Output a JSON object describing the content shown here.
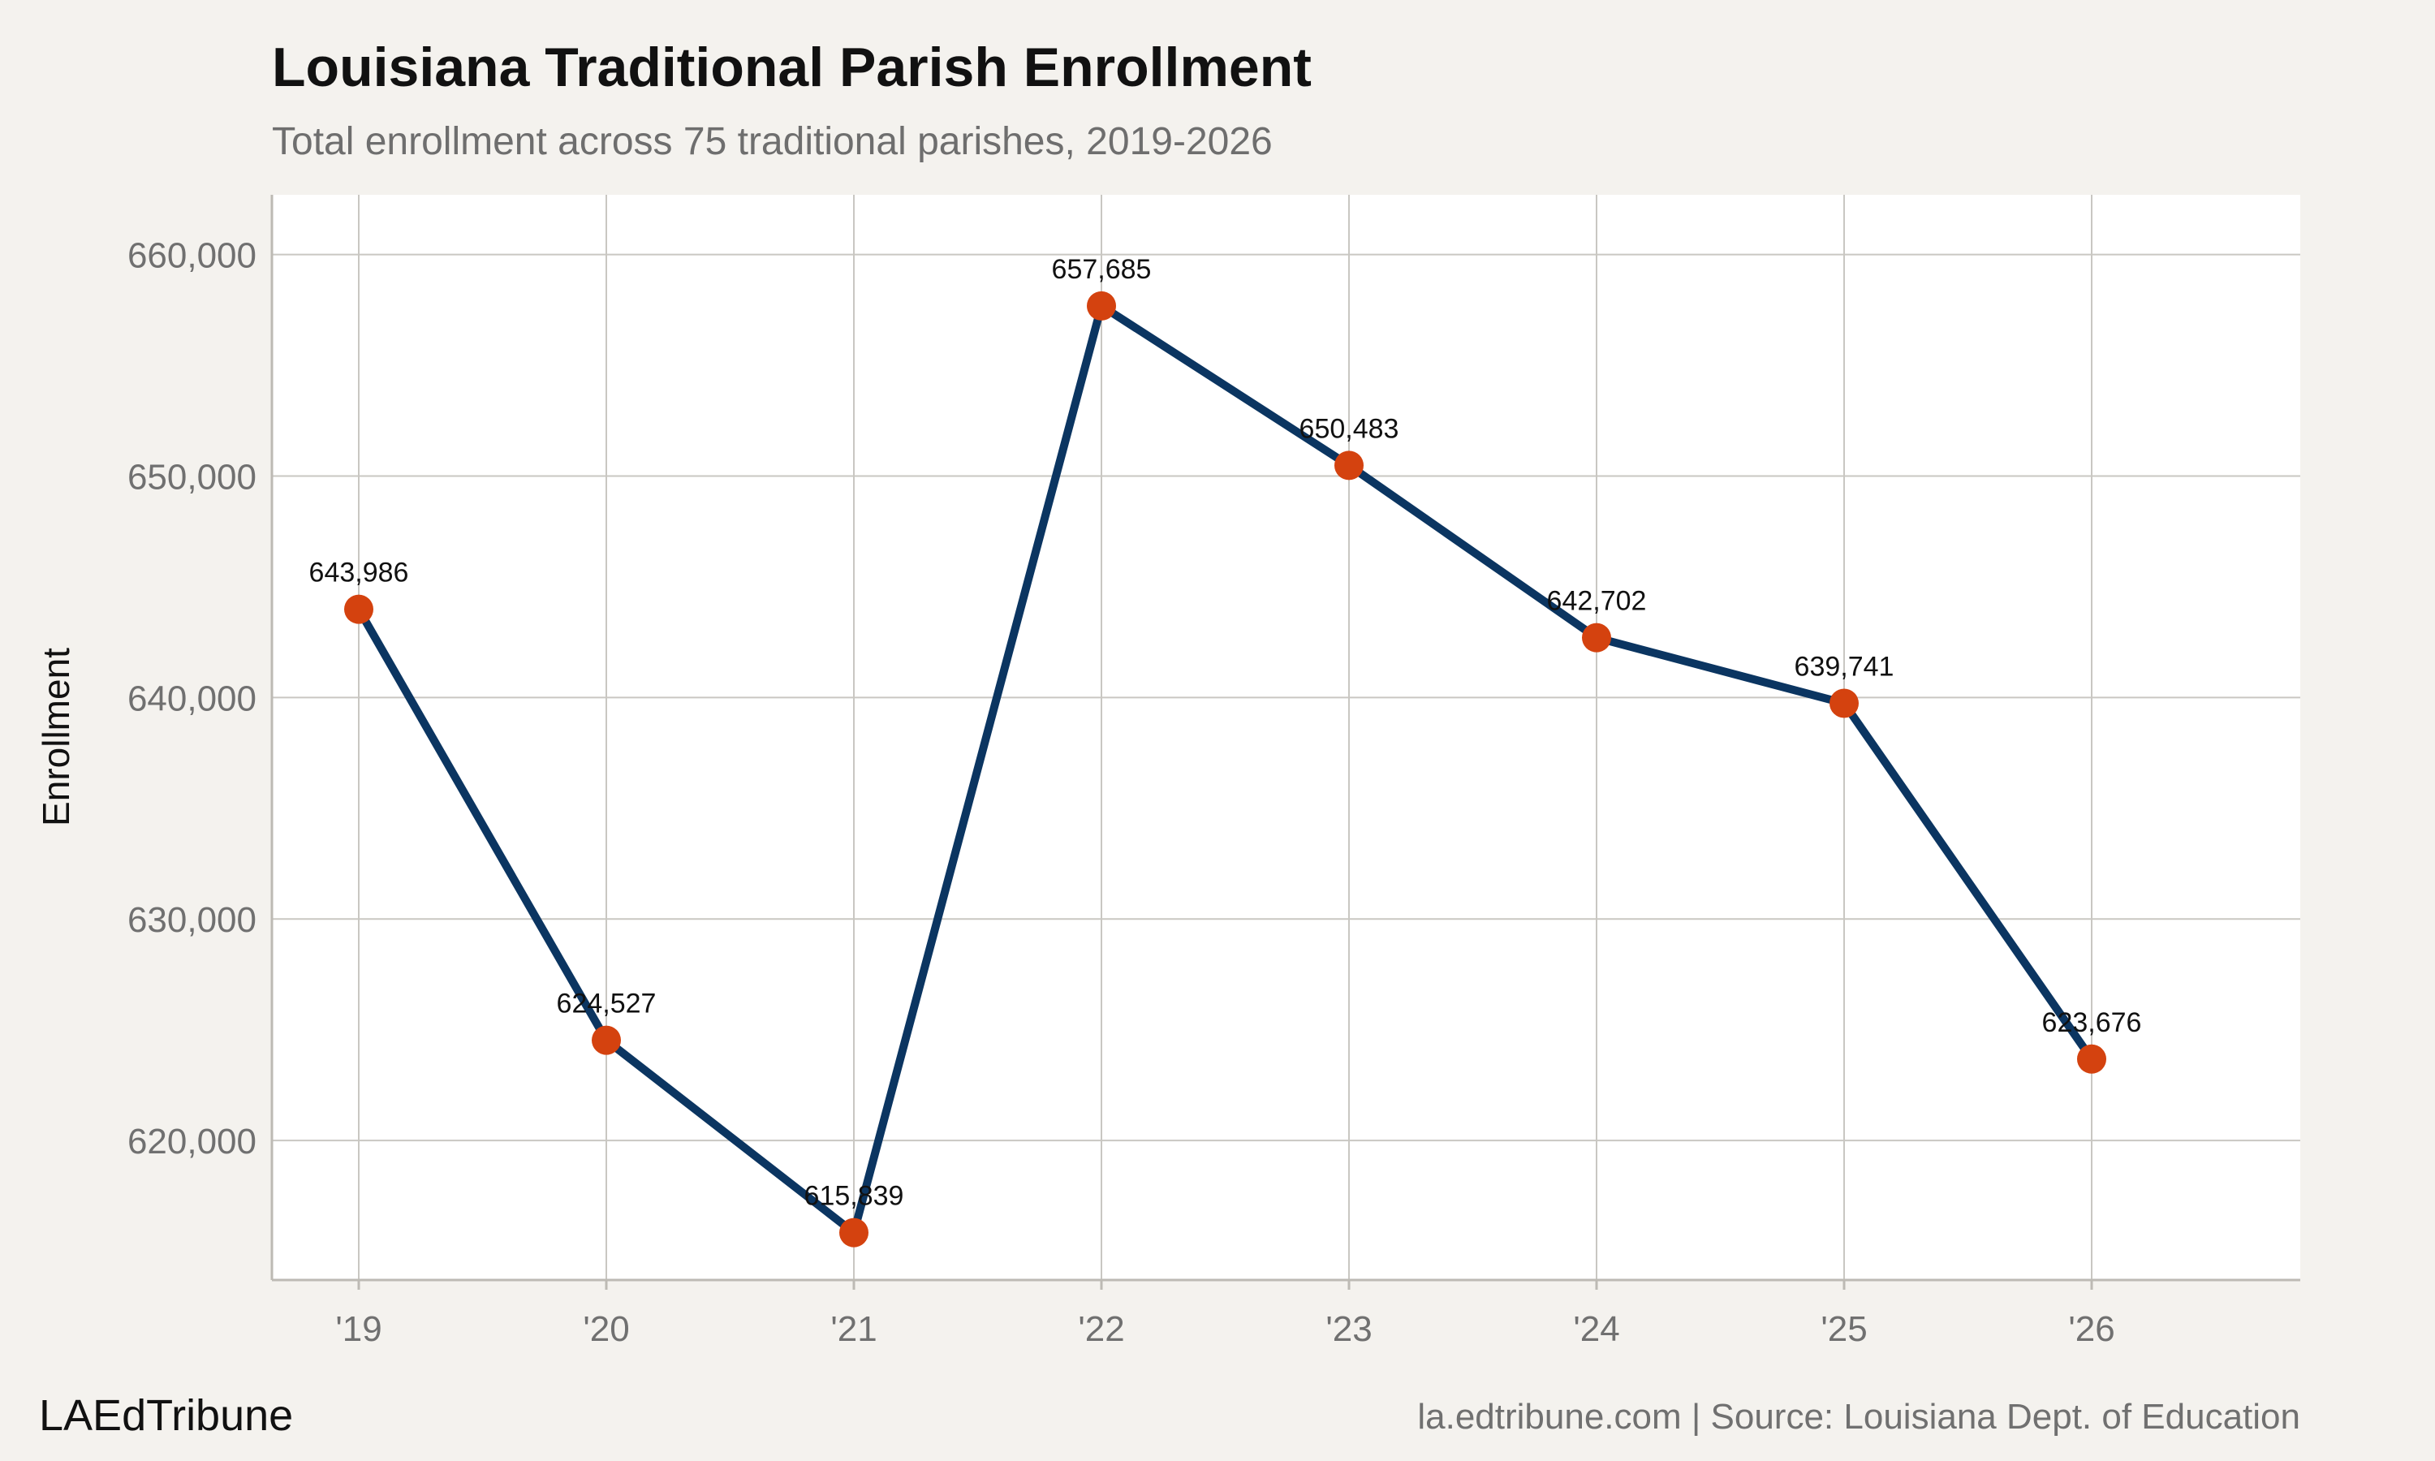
{
  "header": {
    "title": "Louisiana Traditional Parish Enrollment",
    "subtitle": "Total enrollment across 75 traditional parishes, 2019-2026"
  },
  "footer": {
    "brand": "LAEdTribune",
    "source": "la.edtribune.com | Source: Louisiana Dept. of Education"
  },
  "colors": {
    "background": "#f4f2ee",
    "panel": "#ffffff",
    "grid": "#c9c7c2",
    "line": "#0b3561",
    "marker": "#d4420f"
  },
  "chart_data": {
    "type": "line",
    "title": "Louisiana Traditional Parish Enrollment",
    "subtitle": "Total enrollment across 75 traditional parishes, 2019-2026",
    "xlabel": "",
    "ylabel": "Enrollment",
    "categories": [
      "'19",
      "'20",
      "'21",
      "'22",
      "'23",
      "'24",
      "'25",
      "'26"
    ],
    "series": [
      {
        "values": [
          643986,
          624527,
          615839,
          657685,
          650483,
          642702,
          639741,
          623676
        ],
        "labels": [
          "643,986",
          "624,527",
          "615,839",
          "657,685",
          "650,483",
          "642,702",
          "639,741",
          "623,676"
        ]
      }
    ],
    "ylim": [
      613700,
      662700
    ],
    "yticks": [
      620000,
      630000,
      640000,
      650000,
      660000
    ],
    "ytick_labels": [
      "620,000",
      "630,000",
      "640,000",
      "650,000",
      "660,000"
    ],
    "grid": true,
    "legend": "none"
  }
}
